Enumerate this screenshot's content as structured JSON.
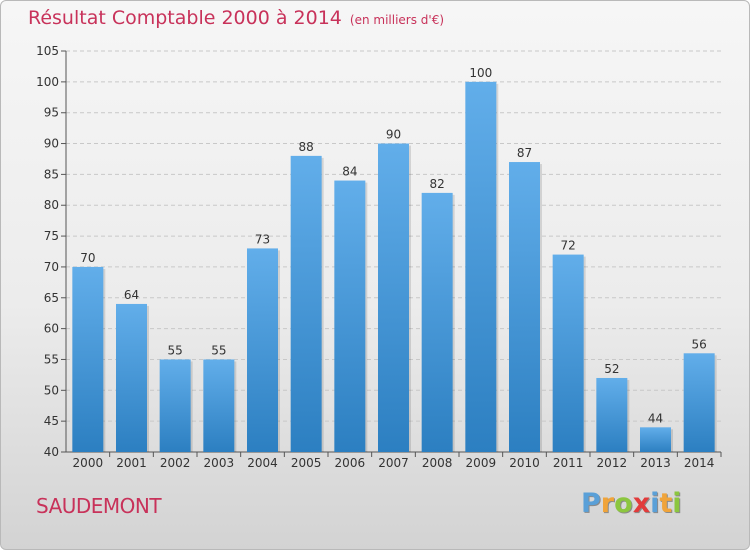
{
  "title": "Résultat Comptable 2000 à 2014",
  "title_unit": "(en milliers d'€)",
  "place": "SAUDEMONT",
  "brand": {
    "letters": [
      "P",
      "r",
      "o",
      "x",
      "i",
      "t",
      "i"
    ],
    "colors": [
      "#5aa0d8",
      "#f0a43a",
      "#8cc63f",
      "#e23b3b",
      "#5aa0d8",
      "#f0a43a",
      "#8cc63f"
    ]
  },
  "colors": {
    "bar_light": "#62aeea",
    "bar_dark": "#2c7fc1",
    "title": "#c8325a",
    "grid": "#c8c8c8"
  },
  "chart_data": {
    "type": "bar",
    "title": "Résultat Comptable 2000 à 2014",
    "subtitle": "(en milliers d'€)",
    "xlabel": "",
    "ylabel": "",
    "categories": [
      "2000",
      "2001",
      "2002",
      "2003",
      "2004",
      "2005",
      "2006",
      "2007",
      "2008",
      "2009",
      "2010",
      "2011",
      "2012",
      "2013",
      "2014"
    ],
    "values": [
      70,
      64,
      55,
      55,
      73,
      88,
      84,
      90,
      82,
      100,
      87,
      72,
      52,
      44,
      56
    ],
    "ylim": [
      40,
      105
    ],
    "yticks": [
      40,
      45,
      50,
      55,
      60,
      65,
      70,
      75,
      80,
      85,
      90,
      95,
      100,
      105
    ],
    "grid": "horizontal dashed",
    "legend": "none"
  }
}
